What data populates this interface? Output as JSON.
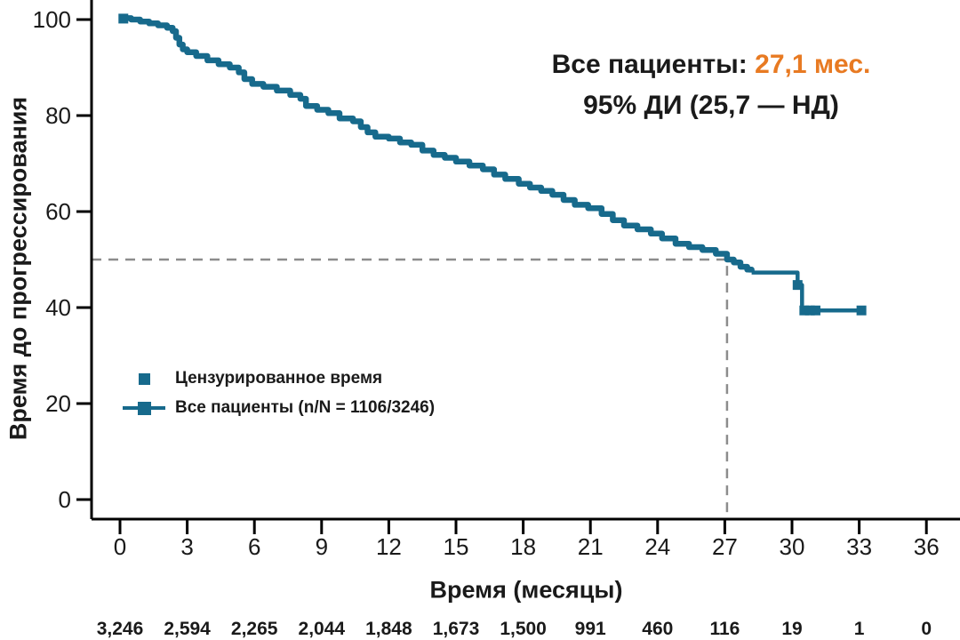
{
  "colors": {
    "curve": "#176A8C",
    "accent_orange": "#E87A22",
    "text": "#1A1A1A",
    "dashed_line": "#8C8C8C",
    "axis": "#000000"
  },
  "annotation": {
    "line1_label": "Все пациенты: ",
    "line1_value": "27,1 мес.",
    "line2": "95% ДИ (25,7 — НД)"
  },
  "legend": {
    "items": [
      {
        "marker": "censor-square",
        "label": "Цензурированное время"
      },
      {
        "marker": "line-with-square",
        "label": "Все пациенты (n/N = 1106/3246)"
      }
    ]
  },
  "chart_data": {
    "type": "line",
    "subtype": "kaplan_meier_step",
    "title": "",
    "xlabel": "Время (месяцы)",
    "ylabel": "Время до прогрессирования",
    "xlim": [
      0,
      36
    ],
    "ylim": [
      0,
      100
    ],
    "x_ticks": [
      0,
      3,
      6,
      9,
      12,
      15,
      18,
      21,
      24,
      27,
      30,
      33,
      36
    ],
    "y_ticks": [
      0,
      20,
      40,
      60,
      80,
      100
    ],
    "grid": false,
    "legend_position": "inside-left-middle",
    "median": {
      "months": 27.1,
      "percent": 50,
      "ci_level": "95%",
      "ci_low": "25,7",
      "ci_high": "НД"
    },
    "series": [
      {
        "name": "Все пациенты (n/N = 1106/3246)",
        "n_events": 1106,
        "n_total": 3246,
        "points_main": [
          [
            0,
            100.3
          ],
          [
            0.5,
            100.0
          ],
          [
            0.9,
            99.6
          ],
          [
            1.3,
            99.2
          ],
          [
            1.7,
            98.8
          ],
          [
            2.1,
            98.3
          ],
          [
            2.35,
            97.6
          ],
          [
            2.5,
            96.2
          ],
          [
            2.65,
            94.8
          ],
          [
            2.8,
            93.8
          ],
          [
            3.0,
            93.2
          ],
          [
            3.4,
            92.4
          ],
          [
            3.9,
            91.5
          ],
          [
            4.4,
            90.7
          ],
          [
            4.9,
            90.0
          ],
          [
            5.3,
            89.0
          ],
          [
            5.55,
            87.6
          ],
          [
            5.9,
            86.6
          ],
          [
            6.4,
            86.0
          ],
          [
            7.0,
            85.2
          ],
          [
            7.6,
            84.3
          ],
          [
            8.05,
            83.5
          ],
          [
            8.3,
            82.0
          ],
          [
            8.8,
            81.2
          ],
          [
            9.3,
            80.5
          ],
          [
            9.8,
            79.4
          ],
          [
            10.4,
            78.8
          ],
          [
            10.75,
            77.6
          ],
          [
            11.05,
            76.5
          ],
          [
            11.4,
            75.6
          ],
          [
            12.0,
            75.2
          ],
          [
            12.5,
            74.4
          ],
          [
            13.0,
            73.9
          ],
          [
            13.5,
            72.7
          ],
          [
            14.0,
            71.8
          ],
          [
            14.5,
            71.2
          ],
          [
            15.0,
            70.4
          ],
          [
            15.6,
            69.6
          ],
          [
            16.2,
            68.8
          ],
          [
            16.7,
            67.7
          ],
          [
            17.2,
            66.8
          ],
          [
            17.8,
            65.8
          ],
          [
            18.3,
            65.0
          ],
          [
            18.8,
            64.3
          ],
          [
            19.3,
            63.5
          ],
          [
            19.8,
            62.4
          ],
          [
            20.3,
            61.4
          ],
          [
            20.9,
            60.7
          ],
          [
            21.5,
            59.5
          ],
          [
            22.0,
            58.2
          ],
          [
            22.5,
            57.1
          ],
          [
            23.1,
            56.3
          ],
          [
            23.7,
            55.4
          ],
          [
            24.2,
            54.4
          ],
          [
            24.8,
            53.3
          ],
          [
            25.4,
            52.6
          ],
          [
            26.0,
            52.0
          ],
          [
            26.6,
            51.2
          ],
          [
            27.1,
            50.0
          ],
          [
            27.4,
            49.4
          ],
          [
            27.7,
            48.5
          ],
          [
            28.0,
            47.9
          ],
          [
            28.2,
            47.3
          ]
        ],
        "points_tail": [
          [
            28.2,
            47.3
          ],
          [
            30.15,
            47.3
          ],
          [
            30.25,
            44.7
          ],
          [
            30.4,
            44.7
          ],
          [
            30.45,
            39.4
          ],
          [
            33.15,
            39.4
          ]
        ],
        "censor_marks": [
          [
            0.15,
            100.2
          ],
          [
            30.25,
            44.7
          ],
          [
            30.55,
            39.4
          ],
          [
            30.8,
            39.4
          ],
          [
            31.05,
            39.4
          ],
          [
            33.1,
            39.4
          ]
        ]
      }
    ],
    "at_risk_values": [
      "3,246",
      "2,594",
      "2,265",
      "2,044",
      "1,848",
      "1,673",
      "1,500",
      "991",
      "460",
      "116",
      "19",
      "1",
      "0"
    ]
  }
}
